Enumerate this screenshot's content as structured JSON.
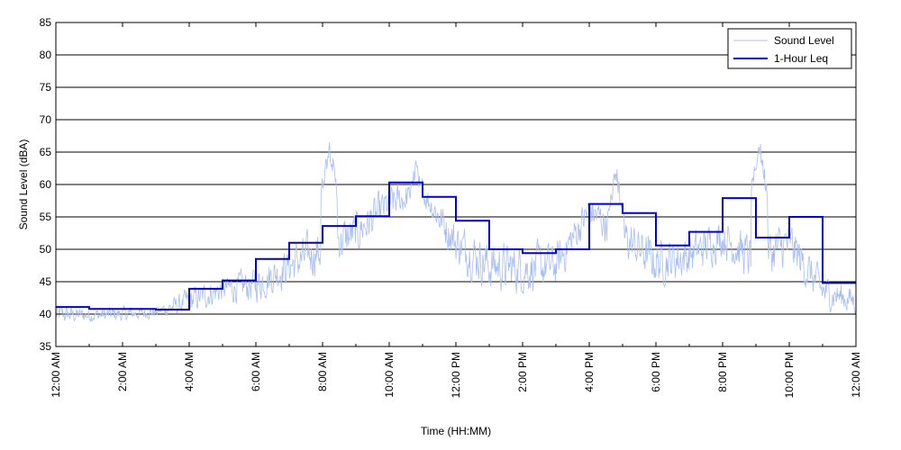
{
  "chart_data": {
    "type": "line",
    "title": "",
    "xlabel": "Time (HH:MM)",
    "ylabel": "Sound Level (dBA)",
    "ylim": [
      35,
      85
    ],
    "xlim_hours": [
      0,
      24
    ],
    "yticks": [
      35,
      40,
      45,
      50,
      55,
      60,
      65,
      70,
      75,
      80,
      85
    ],
    "xtick_hours": [
      0,
      2,
      4,
      6,
      8,
      10,
      12,
      14,
      16,
      18,
      20,
      22,
      24
    ],
    "xtick_labels": [
      "12:00 AM",
      "2:00 AM",
      "4:00 AM",
      "6:00 AM",
      "8:00 AM",
      "10:00 AM",
      "12:00 PM",
      "2:00 PM",
      "4:00 PM",
      "6:00 PM",
      "8:00 PM",
      "10:00 PM",
      "12:00 AM"
    ],
    "grid": "horizontal",
    "legend": "top-right",
    "series": [
      {
        "name": "Sound Level",
        "color": "#a9bff0",
        "noisy": true,
        "hourly_mean": [
          40.0,
          39.8,
          40.0,
          40.3,
          42.0,
          43.8,
          44.5,
          47.5,
          50.0,
          52.5,
          57.0,
          59.0,
          51.0,
          47.5,
          47.0,
          47.5,
          56.0,
          52.0,
          48.0,
          49.0,
          52.0,
          48.0,
          51.0,
          43.5,
          42.0
        ],
        "hourly_spread": [
          2.5,
          1.5,
          1.8,
          1.2,
          3.0,
          3.0,
          4.0,
          4.5,
          5.5,
          5.0,
          4.0,
          3.0,
          5.0,
          5.5,
          5.5,
          5.0,
          4.0,
          5.0,
          5.0,
          5.0,
          4.5,
          5.5,
          5.5,
          4.0,
          3.0
        ],
        "peaks": [
          [
            8.2,
            66.0
          ],
          [
            21.1,
            66.0
          ],
          [
            10.8,
            63.0
          ],
          [
            16.8,
            62.0
          ]
        ]
      },
      {
        "name": "1-Hour Leq",
        "color": "#0000d0",
        "step": true,
        "hours": [
          0,
          1,
          2,
          3,
          4,
          5,
          6,
          7,
          8,
          9,
          10,
          11,
          12,
          13,
          14,
          15,
          16,
          17,
          18,
          19,
          20,
          21,
          22,
          23
        ],
        "values": [
          41.1,
          40.8,
          40.8,
          40.7,
          43.9,
          45.2,
          48.5,
          51.0,
          53.6,
          55.1,
          60.3,
          58.1,
          54.4,
          50.0,
          49.4,
          50.0,
          57.0,
          55.6,
          50.6,
          52.7,
          57.9,
          51.8,
          55.0,
          44.8
        ]
      }
    ]
  }
}
